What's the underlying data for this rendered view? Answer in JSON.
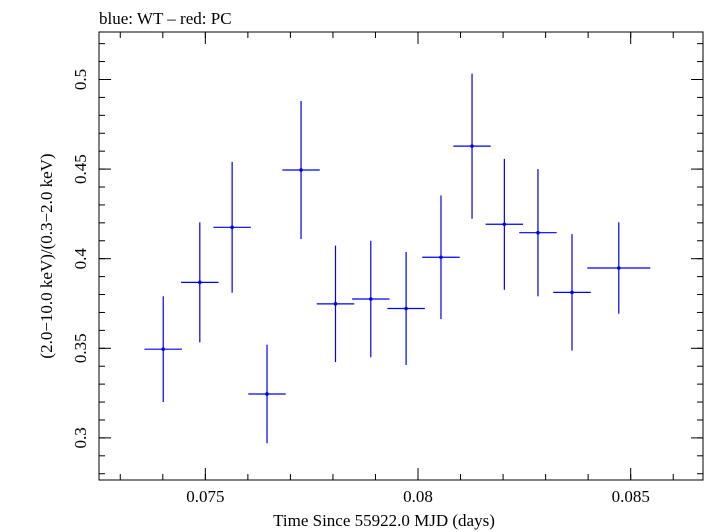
{
  "chart_data": {
    "type": "scatter",
    "title": "blue: WT – red: PC",
    "xlabel": "Time Since 55922.0 MJD (days)",
    "ylabel": "(2.0−10.0 keV)/(0.3−2.0 keV)",
    "xlim": [
      0.0725,
      0.0867
    ],
    "ylim": [
      0.2765,
      0.5265
    ],
    "xticks": [
      {
        "value": 0.075,
        "label": "0.075"
      },
      {
        "value": 0.08,
        "label": "0.08"
      },
      {
        "value": 0.085,
        "label": "0.085"
      }
    ],
    "yticks": [
      {
        "value": 0.3,
        "label": "0.3"
      },
      {
        "value": 0.35,
        "label": "0.35"
      },
      {
        "value": 0.4,
        "label": "0.4"
      },
      {
        "value": 0.45,
        "label": "0.45"
      },
      {
        "value": 0.5,
        "label": "0.5"
      }
    ],
    "x_minor_step": 0.001,
    "y_minor_step": 0.01,
    "grid": false,
    "series": [
      {
        "color": "#0000ee",
        "points": [
          {
            "x": 0.07401,
            "xerr": 0.00044,
            "y": 0.3495,
            "yerr_low": 0.0295,
            "yerr_high": 0.0295
          },
          {
            "x": 0.07487,
            "xerr": 0.00044,
            "y": 0.3868,
            "yerr_low": 0.0335,
            "yerr_high": 0.0335
          },
          {
            "x": 0.07563,
            "xerr": 0.00044,
            "y": 0.4175,
            "yerr_low": 0.0365,
            "yerr_high": 0.0365
          },
          {
            "x": 0.07645,
            "xerr": 0.00044,
            "y": 0.3245,
            "yerr_low": 0.0275,
            "yerr_high": 0.0275
          },
          {
            "x": 0.07725,
            "xerr": 0.00044,
            "y": 0.4495,
            "yerr_low": 0.0385,
            "yerr_high": 0.0385
          },
          {
            "x": 0.07806,
            "xerr": 0.00044,
            "y": 0.3748,
            "yerr_low": 0.0325,
            "yerr_high": 0.0325
          },
          {
            "x": 0.07889,
            "xerr": 0.00044,
            "y": 0.3775,
            "yerr_low": 0.0325,
            "yerr_high": 0.0325
          },
          {
            "x": 0.07972,
            "xerr": 0.00044,
            "y": 0.3722,
            "yerr_low": 0.0315,
            "yerr_high": 0.0315
          },
          {
            "x": 0.08054,
            "xerr": 0.00044,
            "y": 0.4008,
            "yerr_low": 0.0345,
            "yerr_high": 0.0345
          },
          {
            "x": 0.08127,
            "xerr": 0.00044,
            "y": 0.4628,
            "yerr_low": 0.0405,
            "yerr_high": 0.0405
          },
          {
            "x": 0.08203,
            "xerr": 0.00044,
            "y": 0.4192,
            "yerr_low": 0.0365,
            "yerr_high": 0.0365
          },
          {
            "x": 0.08282,
            "xerr": 0.00044,
            "y": 0.4145,
            "yerr_low": 0.0355,
            "yerr_high": 0.0355
          },
          {
            "x": 0.08362,
            "xerr": 0.00044,
            "y": 0.3812,
            "yerr_low": 0.0325,
            "yerr_high": 0.0325
          },
          {
            "x": 0.08472,
            "xerr": 0.00074,
            "y": 0.3948,
            "yerr_low": 0.0255,
            "yerr_high": 0.0255
          }
        ]
      }
    ]
  }
}
